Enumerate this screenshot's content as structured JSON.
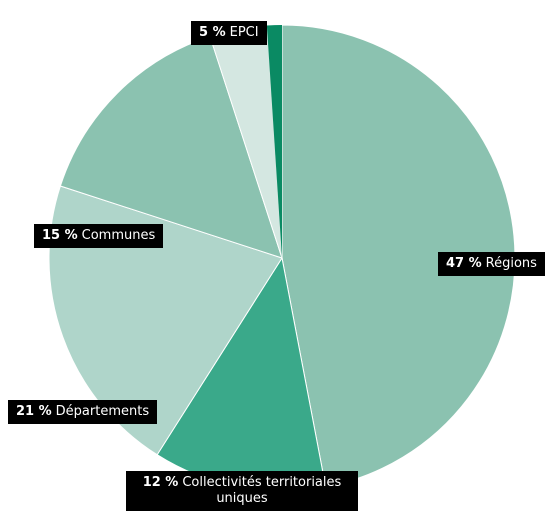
{
  "chart_data": {
    "type": "pie",
    "slices": [
      {
        "label": "Régions",
        "pct_label": "47 %",
        "value": 47,
        "color": "#8bc2b0"
      },
      {
        "label": "Collectivités territoriales uniques",
        "pct_label": "12 %",
        "value": 12,
        "color": "#3aa98a"
      },
      {
        "label": "Départements",
        "pct_label": "21  %",
        "value": 21,
        "color": "#afd5ca"
      },
      {
        "label": "Communes",
        "pct_label": "15 %",
        "value": 15,
        "color": "#8bc2b0"
      },
      {
        "label": "EPCI",
        "pct_label": "5 %",
        "value": 5,
        "color": "#d4e7e1"
      }
    ],
    "small_wedge_color": "#0a8a63",
    "label_style": {
      "background": "#000000",
      "text": "#ffffff"
    }
  }
}
